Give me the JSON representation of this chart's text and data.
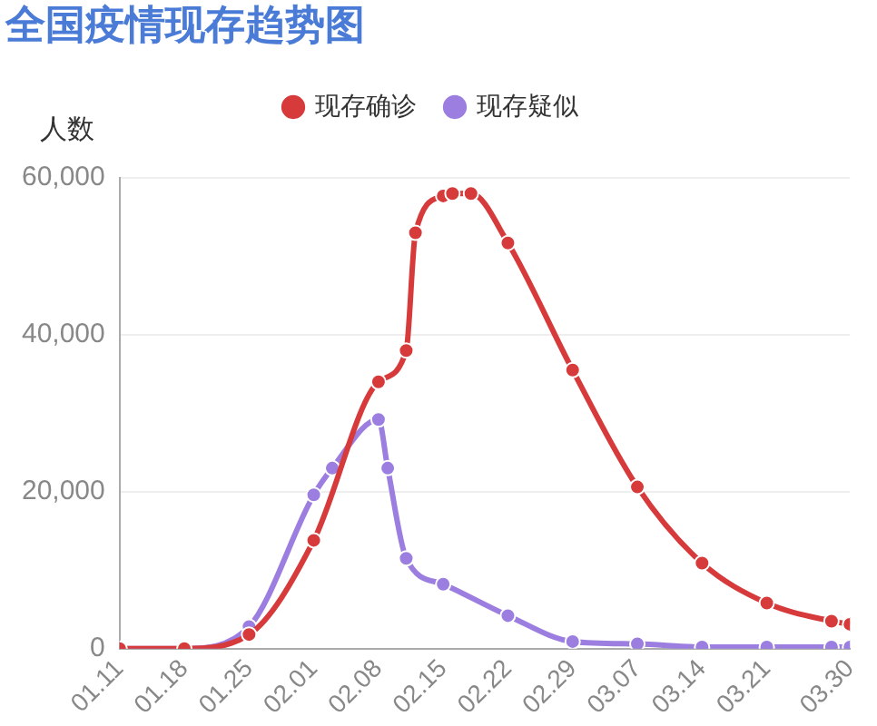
{
  "chart_data": {
    "type": "line",
    "title": "全国疫情现存趋势图",
    "ylabel": "人数",
    "series": [
      {
        "name": "现存确诊",
        "color": "#d63a3a",
        "x": [
          "--01-11",
          "--01-18",
          "--01-25",
          "--02-01",
          "--02-08",
          "--02-11",
          "--02-12",
          "--02-15",
          "--02-16",
          "--02-18",
          "--02-22",
          "--02-29",
          "--03-07",
          "--03-14",
          "--03-21",
          "--03-28",
          "--03-30"
        ],
        "values": [
          0,
          0,
          1800,
          13800,
          34000,
          38000,
          53000,
          57700,
          58000,
          58000,
          51700,
          35500,
          20600,
          10900,
          5800,
          3500,
          3100
        ]
      },
      {
        "name": "现存疑似",
        "color": "#9b7ee0",
        "x": [
          "--01-11",
          "--01-18",
          "--01-25",
          "--02-01",
          "--02-03",
          "--02-08",
          "--02-09",
          "--02-11",
          "--02-15",
          "--02-22",
          "--02-29",
          "--03-07",
          "--03-14",
          "--03-21",
          "--03-28",
          "--03-30"
        ],
        "values": [
          0,
          0,
          2800,
          19600,
          23000,
          29200,
          23000,
          11500,
          8200,
          4200,
          900,
          600,
          200,
          200,
          200,
          200
        ]
      }
    ],
    "xlim": [
      "--01-11",
      "--03-30"
    ],
    "xticks": [
      {
        "value": "--01-11",
        "label": "01.11"
      },
      {
        "value": "--01-18",
        "label": "01.18"
      },
      {
        "value": "--01-25",
        "label": "01.25"
      },
      {
        "value": "--02-01",
        "label": "02.01"
      },
      {
        "value": "--02-08",
        "label": "02.08"
      },
      {
        "value": "--02-15",
        "label": "02.15"
      },
      {
        "value": "--02-22",
        "label": "02.22"
      },
      {
        "value": "--02-29",
        "label": "02.29"
      },
      {
        "value": "--03-07",
        "label": "03.07"
      },
      {
        "value": "--03-14",
        "label": "03.14"
      },
      {
        "value": "--03-21",
        "label": "03.21"
      },
      {
        "value": "--03-30",
        "label": "03.30"
      }
    ],
    "ylim": [
      0,
      60000
    ],
    "yticks": [
      0,
      {
        "value": 20000,
        "label": "20,000"
      },
      {
        "value": 40000,
        "label": "40,000"
      },
      {
        "value": 60000,
        "label": "60,000"
      }
    ],
    "grid": "y",
    "legend": "top",
    "marker": "circle",
    "line_style": "solid"
  }
}
